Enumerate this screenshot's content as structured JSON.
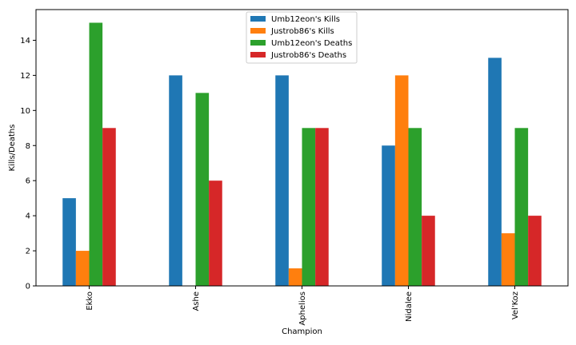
{
  "chart_data": {
    "type": "bar",
    "categories": [
      "Ekko",
      "Ashe",
      "Aphelios",
      "Nidalee",
      "Vel'Koz"
    ],
    "series": [
      {
        "name": "Umb12eon's Kills",
        "color": "#1f77b4",
        "values": [
          5,
          12,
          12,
          8,
          13
        ]
      },
      {
        "name": "Justrob86's Kills",
        "color": "#ff7f0e",
        "values": [
          2,
          0,
          1,
          12,
          3
        ]
      },
      {
        "name": "Umb12eon's Deaths",
        "color": "#2ca02c",
        "values": [
          15,
          11,
          9,
          9,
          9
        ]
      },
      {
        "name": "Justrob86's Deaths",
        "color": "#d62728",
        "values": [
          9,
          6,
          9,
          4,
          4
        ]
      }
    ],
    "xlabel": "Champion",
    "ylabel": "Kills/Deaths",
    "ylim": [
      0,
      15.75
    ],
    "yticks": [
      0,
      2,
      4,
      6,
      8,
      10,
      12,
      14
    ],
    "legend_position": "top-center",
    "grid": false
  }
}
